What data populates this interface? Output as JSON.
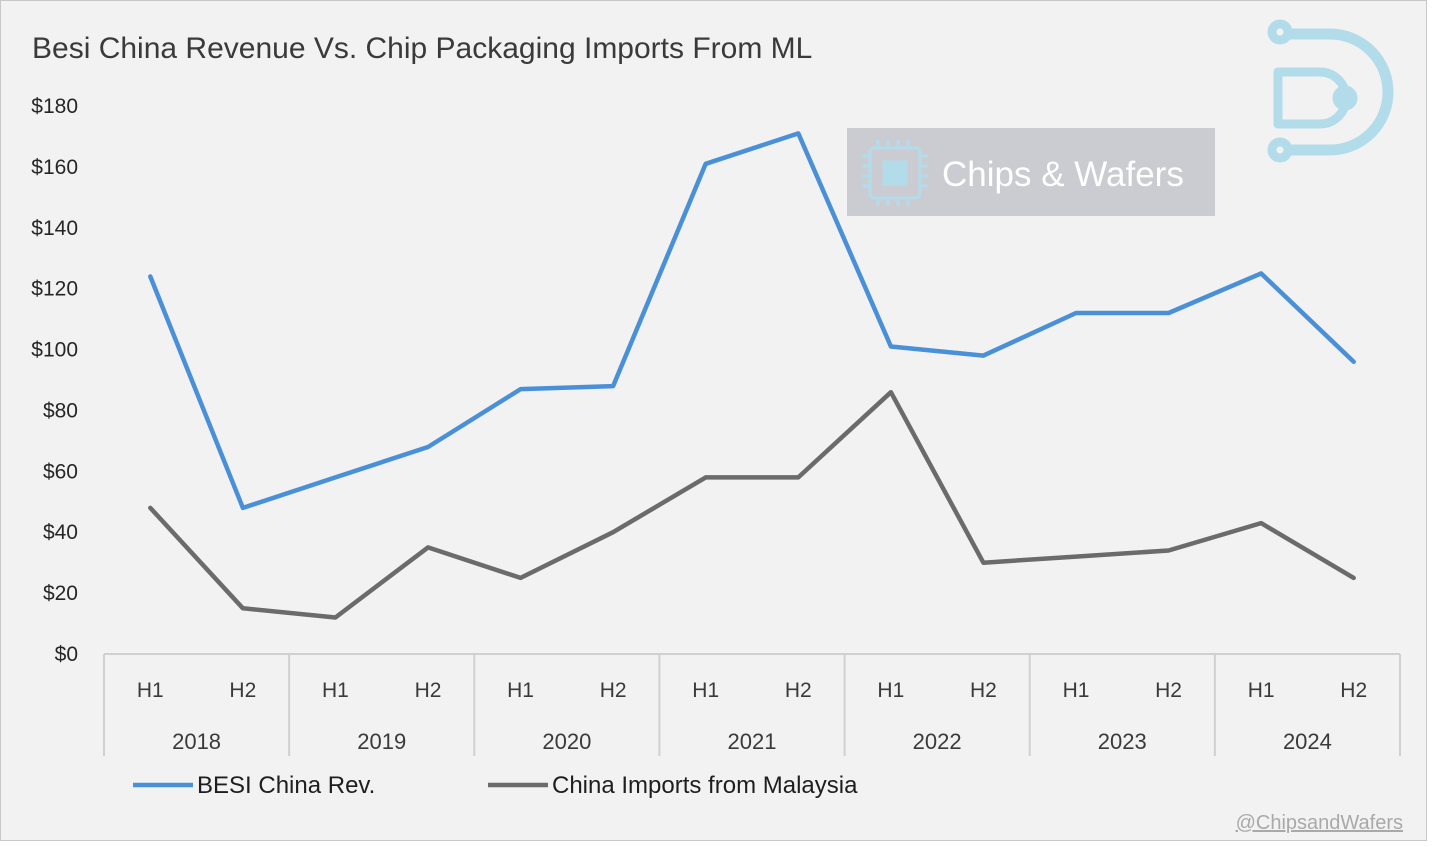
{
  "chart_data": {
    "type": "line",
    "title": "Besi China Revenue Vs. Chip Packaging Imports From ML",
    "categories": [
      "H1",
      "H2",
      "H1",
      "H2",
      "H1",
      "H2",
      "H1",
      "H2",
      "H1",
      "H2",
      "H1",
      "H2",
      "H1",
      "H2"
    ],
    "groups": [
      {
        "label": "2018",
        "span": 2
      },
      {
        "label": "2019",
        "span": 2
      },
      {
        "label": "2020",
        "span": 2
      },
      {
        "label": "2021",
        "span": 2
      },
      {
        "label": "2022",
        "span": 2
      },
      {
        "label": "2023",
        "span": 2
      },
      {
        "label": "2024",
        "span": 2
      }
    ],
    "y_ticks": [
      "$0",
      "$20",
      "$40",
      "$60",
      "$80",
      "$100",
      "$120",
      "$140",
      "$160",
      "$180"
    ],
    "ylim": [
      0,
      180
    ],
    "grid": false,
    "legend_position": "bottom",
    "series": [
      {
        "name": "BESI China Rev.",
        "color": "#4a90d9",
        "values": [
          124,
          48,
          58,
          68,
          87,
          88,
          161,
          171,
          101,
          98,
          112,
          112,
          125,
          96
        ]
      },
      {
        "name": "China Imports from Malaysia",
        "color": "#6b6b6b",
        "values": [
          48,
          15,
          12,
          35,
          25,
          40,
          58,
          58,
          86,
          30,
          32,
          34,
          43,
          25
        ]
      }
    ]
  },
  "watermark": {
    "text": "Chips & Wafers",
    "icon": "chip-icon",
    "logo": "chips-and-wafers-logo"
  },
  "credit": "@ChipsandWafers"
}
